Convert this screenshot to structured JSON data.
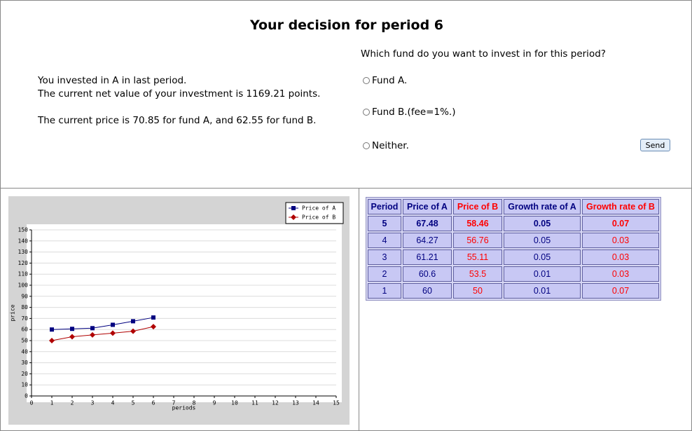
{
  "header": {
    "title": "Your decision for period 6"
  },
  "status": {
    "lines": [
      "You invested in A in last period.",
      "The current net value of your investment is 1169.21 points.",
      "The current price is 70.85 for fund A, and 62.55 for fund B."
    ]
  },
  "question": {
    "prompt": "Which fund do you want to invest in for this period?",
    "options": [
      "Fund A.",
      "Fund B.(fee=1%.)",
      "Neither."
    ],
    "button": "Send"
  },
  "chart_data": {
    "type": "line",
    "x": [
      1,
      2,
      3,
      4,
      5,
      6
    ],
    "series": [
      {
        "name": "Price of A",
        "color": "#000080",
        "marker": "square",
        "values": [
          60,
          60.6,
          61.21,
          64.27,
          67.48,
          70.85
        ]
      },
      {
        "name": "Price of B",
        "color": "#b00000",
        "marker": "diamond",
        "values": [
          50,
          53.5,
          55.11,
          56.76,
          58.46,
          62.55
        ]
      }
    ],
    "xlim": [
      0,
      15
    ],
    "xticks": [
      0,
      1,
      2,
      3,
      4,
      5,
      6,
      7,
      8,
      9,
      10,
      11,
      12,
      13,
      14,
      15
    ],
    "ylim": [
      0,
      150
    ],
    "yticks": [
      0,
      10,
      20,
      30,
      40,
      50,
      60,
      70,
      80,
      90,
      100,
      110,
      120,
      130,
      140,
      150
    ],
    "x_label": "periods",
    "y_label": "price",
    "grid": true,
    "legend": "upper right"
  },
  "table": {
    "columns": [
      "Period",
      "Price of A",
      "Price of B",
      "Growth rate of A",
      "Growth rate of B"
    ],
    "rows": [
      [
        5,
        67.48,
        58.46,
        0.05,
        0.07
      ],
      [
        4,
        64.27,
        56.76,
        0.05,
        0.03
      ],
      [
        3,
        61.21,
        55.11,
        0.05,
        0.03
      ],
      [
        2,
        60.6,
        53.5,
        0.01,
        0.03
      ],
      [
        1,
        60,
        50,
        0.01,
        0.07
      ]
    ]
  }
}
